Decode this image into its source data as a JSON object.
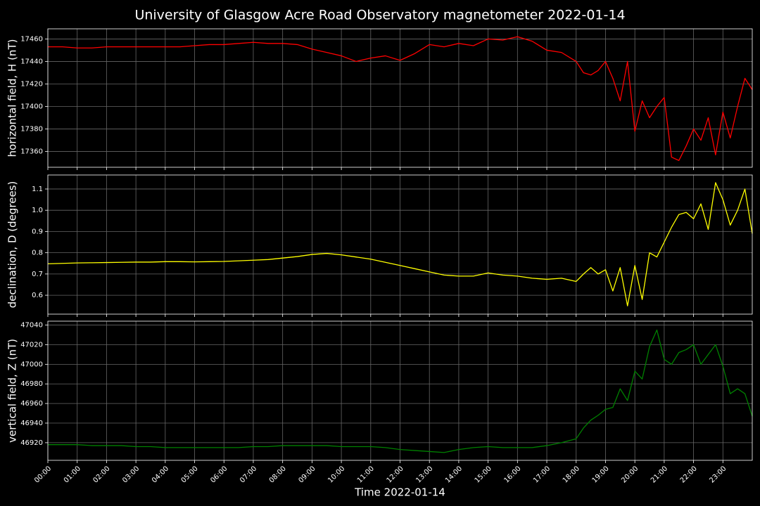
{
  "chart_data": [
    {
      "type": "line",
      "title": "University of Glasgow Acre Road Observatory magnetometer 2022-01-14",
      "y_label": "horizontal field, H (nT)",
      "grid": true,
      "x": [
        0,
        0.5,
        1,
        1.5,
        2,
        2.5,
        3,
        3.5,
        4,
        4.5,
        5,
        5.5,
        6,
        6.5,
        7,
        7.5,
        8,
        8.5,
        9,
        9.5,
        10,
        10.5,
        11,
        11.5,
        12,
        12.5,
        13,
        13.5,
        14,
        14.5,
        15,
        15.5,
        16,
        16.5,
        17,
        17.5,
        18,
        18.25,
        18.5,
        18.75,
        19,
        19.25,
        19.5,
        19.75,
        20,
        20.25,
        20.5,
        20.75,
        21,
        21.25,
        21.5,
        21.75,
        22,
        22.25,
        22.5,
        22.75,
        23,
        23.25,
        23.5,
        23.75,
        24
      ],
      "xlim": [
        0,
        24
      ],
      "ylim": [
        17346,
        17469
      ],
      "yticks": [
        17360,
        17380,
        17400,
        17420,
        17440,
        17460
      ],
      "series": [
        {
          "color": "#ff0000",
          "values": [
            17453,
            17453,
            17452,
            17452,
            17453,
            17453,
            17453,
            17453,
            17453,
            17453,
            17454,
            17455,
            17455,
            17456,
            17457,
            17456,
            17456,
            17455,
            17451,
            17448,
            17445,
            17440,
            17443,
            17445,
            17441,
            17447,
            17455,
            17453,
            17456,
            17454,
            17460,
            17459,
            17462,
            17458,
            17450,
            17448,
            17440,
            17430,
            17428,
            17432,
            17440,
            17425,
            17405,
            17440,
            17378,
            17405,
            17390,
            17400,
            17408,
            17355,
            17352,
            17365,
            17380,
            17370,
            17390,
            17357,
            17395,
            17372,
            17400,
            17425,
            17415
          ]
        }
      ]
    },
    {
      "type": "line",
      "y_label": "declination, D (degrees)",
      "grid": true,
      "x": [
        0,
        0.5,
        1,
        1.5,
        2,
        2.5,
        3,
        3.5,
        4,
        4.5,
        5,
        5.5,
        6,
        6.5,
        7,
        7.5,
        8,
        8.5,
        9,
        9.5,
        10,
        10.5,
        11,
        11.5,
        12,
        12.5,
        13,
        13.5,
        14,
        14.5,
        15,
        15.5,
        16,
        16.5,
        17,
        17.5,
        18,
        18.25,
        18.5,
        18.75,
        19,
        19.25,
        19.5,
        19.75,
        20,
        20.25,
        20.5,
        20.75,
        21,
        21.25,
        21.5,
        21.75,
        22,
        22.25,
        22.5,
        22.75,
        23,
        23.25,
        23.5,
        23.75,
        24
      ],
      "xlim": [
        0,
        24
      ],
      "ylim": [
        0.511,
        1.166
      ],
      "yticks": [
        0.6,
        0.7,
        0.8,
        0.9,
        {
          "value": 1,
          "label": "1.0"
        },
        1.1
      ],
      "series": [
        {
          "color": "#ffff00",
          "values": [
            0.748,
            0.75,
            0.752,
            0.753,
            0.754,
            0.755,
            0.756,
            0.756,
            0.758,
            0.758,
            0.757,
            0.758,
            0.759,
            0.762,
            0.765,
            0.768,
            0.775,
            0.782,
            0.792,
            0.797,
            0.79,
            0.78,
            0.77,
            0.755,
            0.74,
            0.725,
            0.71,
            0.695,
            0.69,
            0.69,
            0.705,
            0.695,
            0.69,
            0.68,
            0.675,
            0.68,
            0.665,
            0.7,
            0.73,
            0.7,
            0.72,
            0.62,
            0.73,
            0.55,
            0.74,
            0.58,
            0.8,
            0.78,
            0.85,
            0.92,
            0.98,
            0.99,
            0.96,
            1.03,
            0.91,
            1.13,
            1.05,
            0.93,
            1.0,
            1.1,
            0.89
          ]
        }
      ]
    },
    {
      "type": "line",
      "y_label": "vertical field, Z (nT)",
      "x_label": "Time 2022-01-14",
      "grid": true,
      "x": [
        0,
        0.5,
        1,
        1.5,
        2,
        2.5,
        3,
        3.5,
        4,
        4.5,
        5,
        5.5,
        6,
        6.5,
        7,
        7.5,
        8,
        8.5,
        9,
        9.5,
        10,
        10.5,
        11,
        11.5,
        12,
        12.5,
        13,
        13.5,
        14,
        14.5,
        15,
        15.5,
        16,
        16.5,
        17,
        17.5,
        18,
        18.25,
        18.5,
        18.75,
        19,
        19.25,
        19.5,
        19.75,
        20,
        20.25,
        20.5,
        20.75,
        21,
        21.25,
        21.5,
        21.75,
        22,
        22.25,
        22.5,
        22.75,
        23,
        23.25,
        23.5,
        23.75,
        24
      ],
      "xlim": [
        0,
        24
      ],
      "ylim": [
        46902,
        47044
      ],
      "yticks": [
        46920,
        46940,
        46960,
        46980,
        47000,
        47020,
        47040
      ],
      "xticks": [
        {
          "value": 0,
          "label": "00:00"
        },
        {
          "value": 1,
          "label": "01:00"
        },
        {
          "value": 2,
          "label": "02:00"
        },
        {
          "value": 3,
          "label": "03:00"
        },
        {
          "value": 4,
          "label": "04:00"
        },
        {
          "value": 5,
          "label": "05:00"
        },
        {
          "value": 6,
          "label": "06:00"
        },
        {
          "value": 7,
          "label": "07:00"
        },
        {
          "value": 8,
          "label": "08:00"
        },
        {
          "value": 9,
          "label": "09:00"
        },
        {
          "value": 10,
          "label": "10:00"
        },
        {
          "value": 11,
          "label": "11:00"
        },
        {
          "value": 12,
          "label": "12:00"
        },
        {
          "value": 13,
          "label": "13:00"
        },
        {
          "value": 14,
          "label": "14:00"
        },
        {
          "value": 15,
          "label": "15:00"
        },
        {
          "value": 16,
          "label": "16:00"
        },
        {
          "value": 17,
          "label": "17:00"
        },
        {
          "value": 18,
          "label": "18:00"
        },
        {
          "value": 19,
          "label": "19:00"
        },
        {
          "value": 20,
          "label": "20:00"
        },
        {
          "value": 21,
          "label": "21:00"
        },
        {
          "value": 22,
          "label": "22:00"
        },
        {
          "value": 23,
          "label": "23:00"
        }
      ],
      "series": [
        {
          "color": "#008000",
          "values": [
            46918,
            46918,
            46918,
            46917,
            46917,
            46917,
            46916,
            46916,
            46915,
            46915,
            46915,
            46915,
            46915,
            46915,
            46916,
            46916,
            46917,
            46917,
            46917,
            46917,
            46916,
            46916,
            46916,
            46915,
            46913,
            46912,
            46911,
            46910,
            46913,
            46915,
            46916,
            46915,
            46915,
            46915,
            46917,
            46920,
            46924,
            46935,
            46943,
            46948,
            46954,
            46956,
            46975,
            46963,
            46993,
            46985,
            47018,
            47035,
            47005,
            47000,
            47012,
            47015,
            47020,
            47000,
            47010,
            47020,
            46998,
            46970,
            46975,
            46970,
            46947
          ]
        }
      ]
    }
  ]
}
